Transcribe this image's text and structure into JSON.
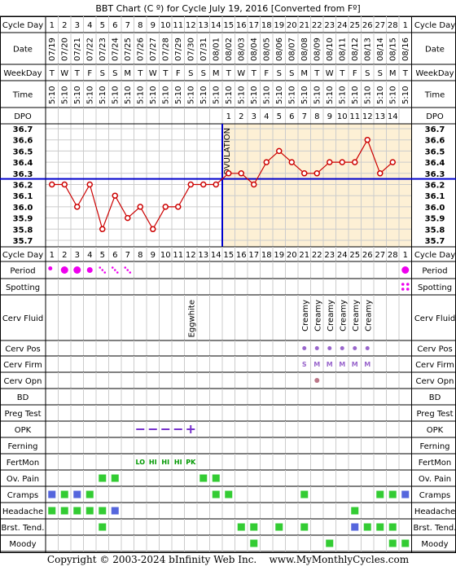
{
  "title": "BBT Chart (C º) for Cycle July 19, 2016  [Converted from Fº]",
  "labels": {
    "cycle_day": "Cycle Day",
    "date": "Date",
    "weekday": "WeekDay",
    "time": "Time",
    "dpo": "DPO",
    "period": "Period",
    "spotting": "Spotting",
    "cerv_fluid": "Cerv Fluid",
    "cerv_pos": "Cerv Pos",
    "cerv_firm": "Cerv Firm",
    "cerv_opn": "Cerv Opn",
    "bd": "BD",
    "preg_test": "Preg Test",
    "opk": "OPK",
    "ferning": "Ferning",
    "fertmon": "FertMon",
    "ov_pain": "Ov. Pain",
    "cramps": "Cramps",
    "headache": "Headache",
    "brst_tend": "Brst. Tend.",
    "moody": "Moody"
  },
  "colors": {
    "follicular_bg": "#ffffff",
    "luteal_bg": "#fdf0d5",
    "grid": "#cccccc",
    "temp_line": "#cc0000",
    "coverline": "#0000cc",
    "period": "#ee00ee",
    "symptom_green": "#33cc33",
    "symptom_blue": "#5566dd",
    "cerv_purple": "#9966cc",
    "opk_purple": "#7733cc",
    "fertmon_green": "#009900"
  },
  "chart_data": {
    "type": "line",
    "title": "BBT Chart (C º) for Cycle July 19, 2016  [Converted from Fº]",
    "cycle_days": [
      1,
      2,
      3,
      4,
      5,
      6,
      7,
      8,
      9,
      10,
      11,
      12,
      13,
      14,
      15,
      16,
      17,
      18,
      19,
      20,
      21,
      22,
      23,
      24,
      25,
      26,
      27,
      28,
      1
    ],
    "dates": [
      "07/19",
      "07/20",
      "07/21",
      "07/22",
      "07/23",
      "07/24",
      "07/25",
      "07/26",
      "07/27",
      "07/28",
      "07/29",
      "07/30",
      "07/31",
      "08/01",
      "08/02",
      "08/03",
      "08/04",
      "08/05",
      "08/06",
      "08/07",
      "08/08",
      "08/09",
      "08/10",
      "08/11",
      "08/12",
      "08/13",
      "08/14",
      "08/15",
      "08/16"
    ],
    "weekdays": [
      "T",
      "W",
      "T",
      "F",
      "S",
      "S",
      "M",
      "T",
      "W",
      "T",
      "F",
      "S",
      "S",
      "M",
      "T",
      "W",
      "T",
      "F",
      "S",
      "S",
      "M",
      "T",
      "W",
      "T",
      "F",
      "S",
      "S",
      "M",
      "T"
    ],
    "times": [
      "5:10",
      "5:10",
      "5:10",
      "5:10",
      "5:10",
      "5:10",
      "5:10",
      "5:10",
      "5:10",
      "5:10",
      "5:10",
      "5:10",
      "5:10",
      "5:10",
      "5:10",
      "5:10",
      "5:10",
      "5:10",
      "5:10",
      "5:10",
      "5:10",
      "5:10",
      "5:10",
      "5:10",
      "5:10",
      "5:10",
      "5:10",
      "5:10",
      "5:10"
    ],
    "dpo": [
      "",
      "",
      "",
      "",
      "",
      "",
      "",
      "",
      "",
      "",
      "",
      "",
      "",
      "",
      "1",
      "2",
      "3",
      "4",
      "5",
      "6",
      "7",
      "8",
      "9",
      "10",
      "11",
      "12",
      "13",
      "14",
      ""
    ],
    "temperatures": [
      36.2,
      36.2,
      36.0,
      36.2,
      35.8,
      36.1,
      35.9,
      36.0,
      35.8,
      36.0,
      36.0,
      36.2,
      36.2,
      36.2,
      36.3,
      36.3,
      36.2,
      36.4,
      36.5,
      36.4,
      36.3,
      36.3,
      36.4,
      36.4,
      36.4,
      36.6,
      36.3,
      36.4,
      null
    ],
    "y_ticks": [
      "36.7",
      "36.6",
      "36.5",
      "36.4",
      "36.3",
      "36.2",
      "36.1",
      "36.0",
      "35.9",
      "35.8",
      "35.7"
    ],
    "ylim": [
      35.7,
      36.7
    ],
    "coverline": 36.25,
    "ovulation_after_day": 14,
    "ovulation_label": "OVULATION",
    "grid": true
  },
  "rows": {
    "period": [
      "light",
      "heavy",
      "heavy",
      "medium",
      "spot",
      "spot",
      "spot",
      "",
      "",
      "",
      "",
      "",
      "",
      "",
      "",
      "",
      "",
      "",
      "",
      "",
      "",
      "",
      "",
      "",
      "",
      "",
      "",
      "",
      "heavy"
    ],
    "spotting": [
      "",
      "",
      "",
      "",
      "",
      "",
      "",
      "",
      "",
      "",
      "",
      "",
      "",
      "",
      "",
      "",
      "",
      "",
      "",
      "",
      "",
      "",
      "",
      "",
      "",
      "",
      "",
      "",
      "yes"
    ],
    "cerv_fluid": [
      "",
      "",
      "",
      "",
      "",
      "",
      "",
      "",
      "",
      "",
      "",
      "Eggwhite",
      "",
      "",
      "",
      "",
      "",
      "",
      "",
      "",
      "Creamy",
      "Creamy",
      "Creamy",
      "Creamy",
      "Creamy",
      "Creamy",
      "",
      "",
      ""
    ],
    "cerv_pos": [
      "",
      "",
      "",
      "",
      "",
      "",
      "",
      "",
      "",
      "",
      "",
      "",
      "",
      "",
      "",
      "",
      "",
      "",
      "",
      "",
      "dot",
      "dot",
      "dot",
      "dot",
      "dot",
      "dot",
      "",
      "",
      ""
    ],
    "cerv_firm": [
      "",
      "",
      "",
      "",
      "",
      "",
      "",
      "",
      "",
      "",
      "",
      "",
      "",
      "",
      "",
      "",
      "",
      "",
      "",
      "",
      "S",
      "M",
      "M",
      "M",
      "M",
      "M",
      "",
      "",
      ""
    ],
    "cerv_opn": [
      "",
      "",
      "",
      "",
      "",
      "",
      "",
      "",
      "",
      "",
      "",
      "",
      "",
      "",
      "",
      "",
      "",
      "",
      "",
      "",
      "",
      "dot",
      "",
      "",
      "",
      "",
      "",
      "",
      ""
    ],
    "opk": [
      "",
      "",
      "",
      "",
      "",
      "",
      "",
      "neg",
      "neg",
      "neg",
      "neg",
      "pos",
      "",
      "",
      "",
      "",
      "",
      "",
      "",
      "",
      "",
      "",
      "",
      "",
      "",
      "",
      "",
      "",
      ""
    ],
    "fertmon": [
      "",
      "",
      "",
      "",
      "",
      "",
      "",
      "LO",
      "HI",
      "HI",
      "HI",
      "PK",
      "",
      "",
      "",
      "",
      "",
      "",
      "",
      "",
      "",
      "",
      "",
      "",
      "",
      "",
      "",
      "",
      ""
    ],
    "ov_pain": [
      "",
      "",
      "",
      "",
      "g",
      "g",
      "",
      "",
      "",
      "",
      "",
      "",
      "g",
      "g",
      "",
      "",
      "",
      "",
      "",
      "",
      "",
      "",
      "",
      "",
      "",
      "",
      "",
      "",
      ""
    ],
    "cramps": [
      "b",
      "g",
      "b",
      "g",
      "",
      "",
      "",
      "",
      "",
      "",
      "",
      "",
      "",
      "g",
      "g",
      "",
      "",
      "",
      "",
      "",
      "g",
      "",
      "",
      "",
      "",
      "",
      "g",
      "g",
      "b"
    ],
    "headache": [
      "g",
      "g",
      "g",
      "g",
      "g",
      "b",
      "",
      "",
      "",
      "",
      "",
      "",
      "",
      "",
      "",
      "",
      "",
      "",
      "",
      "",
      "",
      "",
      "",
      "",
      "g",
      "",
      "",
      "",
      ""
    ],
    "brst_tend": [
      "",
      "",
      "",
      "",
      "g",
      "",
      "",
      "",
      "",
      "",
      "",
      "",
      "",
      "",
      "",
      "g",
      "g",
      "",
      "g",
      "",
      "g",
      "",
      "",
      "",
      "b",
      "g",
      "g",
      "g",
      ""
    ],
    "moody": [
      "",
      "",
      "",
      "",
      "",
      "",
      "",
      "",
      "",
      "",
      "",
      "",
      "",
      "",
      "",
      "",
      "g",
      "",
      "",
      "",
      "",
      "",
      "g",
      "",
      "",
      "",
      "",
      "g",
      "g"
    ]
  },
  "footer": "Copyright © 2003-2024 bInfinity Web Inc.    www.MyMonthlyCycles.com"
}
